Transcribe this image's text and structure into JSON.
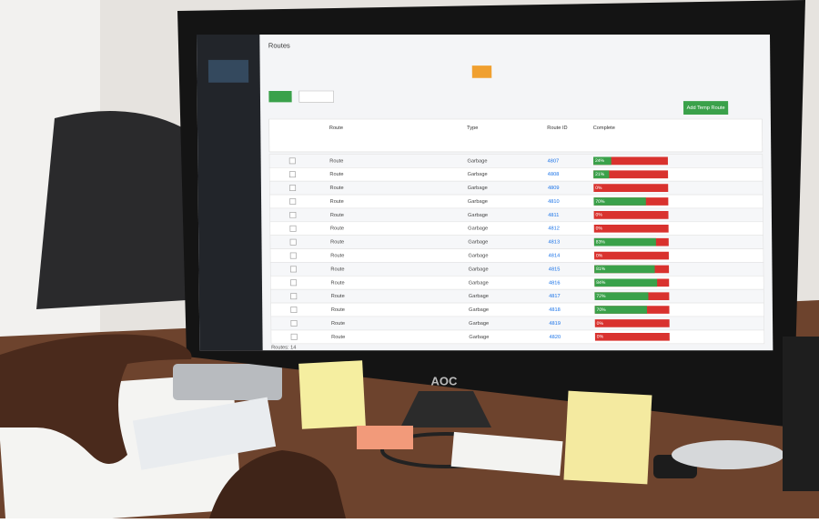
{
  "monitor": {
    "brand": "AOC"
  },
  "app": {
    "title": "Routes",
    "add_button": "Add Temp Route",
    "footer": "Routes: 14"
  },
  "table": {
    "headers": [
      "Route",
      "Type",
      "Route ID",
      "Complete"
    ],
    "rows": [
      {
        "route": "Route",
        "type": "Garbage",
        "id": "4807",
        "complete": 24,
        "complete_label": "24%"
      },
      {
        "route": "Route",
        "type": "Garbage",
        "id": "4808",
        "complete": 21,
        "complete_label": "21%"
      },
      {
        "route": "Route",
        "type": "Garbage",
        "id": "4809",
        "complete": 0,
        "complete_label": "0%"
      },
      {
        "route": "Route",
        "type": "Garbage",
        "id": "4810",
        "complete": 70,
        "complete_label": "70%"
      },
      {
        "route": "Route",
        "type": "Garbage",
        "id": "4811",
        "complete": 0,
        "complete_label": "0%"
      },
      {
        "route": "Route",
        "type": "Garbage",
        "id": "4812",
        "complete": 0,
        "complete_label": "0%"
      },
      {
        "route": "Route",
        "type": "Garbage",
        "id": "4813",
        "complete": 83,
        "complete_label": "83%"
      },
      {
        "route": "Route",
        "type": "Garbage",
        "id": "4814",
        "complete": 0,
        "complete_label": "0%"
      },
      {
        "route": "Route",
        "type": "Garbage",
        "id": "4815",
        "complete": 81,
        "complete_label": "81%"
      },
      {
        "route": "Route",
        "type": "Garbage",
        "id": "4816",
        "complete": 84,
        "complete_label": "84%"
      },
      {
        "route": "Route",
        "type": "Garbage",
        "id": "4817",
        "complete": 72,
        "complete_label": "72%"
      },
      {
        "route": "Route",
        "type": "Garbage",
        "id": "4818",
        "complete": 70,
        "complete_label": "70%"
      },
      {
        "route": "Route",
        "type": "Garbage",
        "id": "4819",
        "complete": 0,
        "complete_label": "0%"
      },
      {
        "route": "Route",
        "type": "Garbage",
        "id": "4820",
        "complete": 0,
        "complete_label": "0%"
      }
    ]
  }
}
